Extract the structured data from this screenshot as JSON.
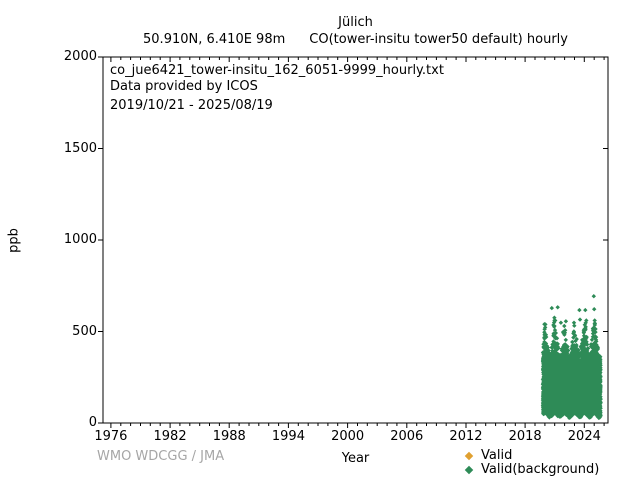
{
  "header": {
    "title": "Jülich",
    "location": "50.910N, 6.410E 98m",
    "parameter": "CO(tower-insitu tower50 default) hourly"
  },
  "annotations": {
    "filename": "co_jue6421_tower-insitu_162_6051-9999_hourly.txt",
    "provider": "Data provided by ICOS",
    "date_range": "2019/10/21 - 2025/08/19"
  },
  "footer": {
    "credit": "WMO WDCGG / JMA"
  },
  "chart_data": {
    "type": "scatter",
    "title": "Jülich",
    "subtitle": "50.910N, 6.410E 98m    CO(tower-insitu tower50 default) hourly",
    "xlabel": "Year",
    "ylabel": "ppb",
    "xlim": [
      1975.2,
      2026.4
    ],
    "ylim": [
      0,
      2000
    ],
    "xticks_major": [
      1976,
      1982,
      1988,
      1994,
      2000,
      2006,
      2012,
      2018,
      2024
    ],
    "xtick_minor_step": 1,
    "yticks_major": [
      0,
      500,
      1000,
      1500,
      2000
    ],
    "grid": false,
    "frame_color": "#000000",
    "legend_position": "bottom-right",
    "legend": [
      {
        "label": "Valid",
        "color": "#e0a030",
        "marker": "diamond"
      },
      {
        "label": "Valid(background)",
        "color": "#2e8b57",
        "marker": "diamond"
      }
    ],
    "series": [
      {
        "name": "Valid",
        "color": "#e0a030",
        "marker": "diamond",
        "points": []
      },
      {
        "name": "Valid(background)",
        "color": "#2e8b57",
        "marker": "diamond",
        "coverage_years": [
          2019.79,
          2025.63
        ],
        "summary": {
          "min_ppb": 30,
          "dense_core_ppb": [
            45,
            400
          ],
          "winter_spikes_ppb": [
            450,
            585
          ],
          "peak_ppb": 693
        },
        "monthly_bands": [
          [
            2019.79,
            60,
            340,
            430
          ],
          [
            2019.833,
            65,
            360,
            470
          ],
          [
            2019.917,
            70,
            385,
            520
          ],
          [
            2020.0,
            70,
            390,
            545
          ],
          [
            2020.083,
            68,
            380,
            505
          ],
          [
            2020.167,
            60,
            360,
            462
          ],
          [
            2020.25,
            55,
            340,
            432
          ],
          [
            2020.333,
            50,
            320,
            402
          ],
          [
            2020.417,
            46,
            300,
            378
          ],
          [
            2020.5,
            45,
            298,
            372
          ],
          [
            2020.583,
            50,
            308,
            392
          ],
          [
            2020.667,
            55,
            330,
            422
          ],
          [
            2020.75,
            60,
            350,
            452
          ],
          [
            2020.833,
            65,
            378,
            540
          ],
          [
            2020.917,
            70,
            398,
            585
          ],
          [
            2021.0,
            70,
            392,
            560
          ],
          [
            2021.083,
            68,
            382,
            522
          ],
          [
            2021.167,
            60,
            362,
            472
          ],
          [
            2021.25,
            55,
            342,
            440
          ],
          [
            2021.333,
            50,
            322,
            412
          ],
          [
            2021.417,
            46,
            300,
            380
          ],
          [
            2021.5,
            45,
            300,
            378
          ],
          [
            2021.583,
            50,
            310,
            398
          ],
          [
            2021.667,
            55,
            332,
            428
          ],
          [
            2021.75,
            60,
            352,
            458
          ],
          [
            2021.833,
            65,
            372,
            502
          ],
          [
            2021.917,
            70,
            390,
            542
          ],
          [
            2022.0,
            70,
            382,
            522
          ],
          [
            2022.083,
            66,
            372,
            492
          ],
          [
            2022.167,
            60,
            356,
            456
          ],
          [
            2022.25,
            55,
            336,
            426
          ],
          [
            2022.333,
            50,
            316,
            400
          ],
          [
            2022.417,
            45,
            296,
            372
          ],
          [
            2022.5,
            45,
            296,
            366
          ],
          [
            2022.583,
            50,
            306,
            386
          ],
          [
            2022.667,
            55,
            326,
            416
          ],
          [
            2022.75,
            60,
            346,
            446
          ],
          [
            2022.833,
            65,
            370,
            496
          ],
          [
            2022.917,
            70,
            386,
            532
          ],
          [
            2023.0,
            70,
            386,
            526
          ],
          [
            2023.083,
            66,
            376,
            496
          ],
          [
            2023.167,
            60,
            356,
            462
          ],
          [
            2023.25,
            55,
            336,
            432
          ],
          [
            2023.333,
            50,
            316,
            406
          ],
          [
            2023.417,
            45,
            296,
            376
          ],
          [
            2023.5,
            46,
            300,
            402
          ],
          [
            2023.583,
            50,
            312,
            422
          ],
          [
            2023.667,
            55,
            332,
            442
          ],
          [
            2023.75,
            60,
            350,
            472
          ],
          [
            2023.833,
            65,
            376,
            512
          ],
          [
            2023.917,
            70,
            396,
            552
          ],
          [
            2024.0,
            70,
            396,
            556
          ],
          [
            2024.083,
            66,
            386,
            552
          ],
          [
            2024.167,
            60,
            362,
            472
          ],
          [
            2024.25,
            55,
            342,
            436
          ],
          [
            2024.333,
            50,
            322,
            410
          ],
          [
            2024.417,
            45,
            302,
            382
          ],
          [
            2024.5,
            45,
            300,
            376
          ],
          [
            2024.583,
            50,
            310,
            396
          ],
          [
            2024.667,
            55,
            332,
            432
          ],
          [
            2024.75,
            60,
            356,
            462
          ],
          [
            2024.833,
            65,
            380,
            522
          ],
          [
            2024.917,
            70,
            400,
            572
          ],
          [
            2025.0,
            70,
            400,
            588
          ],
          [
            2025.083,
            66,
            390,
            562
          ],
          [
            2025.167,
            60,
            366,
            482
          ],
          [
            2025.25,
            55,
            346,
            447
          ],
          [
            2025.333,
            50,
            326,
            417
          ],
          [
            2025.417,
            45,
            306,
            387
          ],
          [
            2025.5,
            45,
            306,
            382
          ],
          [
            2025.583,
            50,
            316,
            402
          ]
        ],
        "outliers": [
          [
            2019.95,
            540
          ],
          [
            2020.7,
            628
          ],
          [
            2021.05,
            560
          ],
          [
            2021.3,
            632
          ],
          [
            2021.62,
            548
          ],
          [
            2022.13,
            556
          ],
          [
            2022.95,
            548
          ],
          [
            2023.5,
            617
          ],
          [
            2023.56,
            565
          ],
          [
            2024.1,
            617
          ],
          [
            2024.2,
            560
          ],
          [
            2024.96,
            693
          ],
          [
            2025.0,
            622
          ],
          [
            2025.05,
            560
          ]
        ]
      }
    ]
  }
}
